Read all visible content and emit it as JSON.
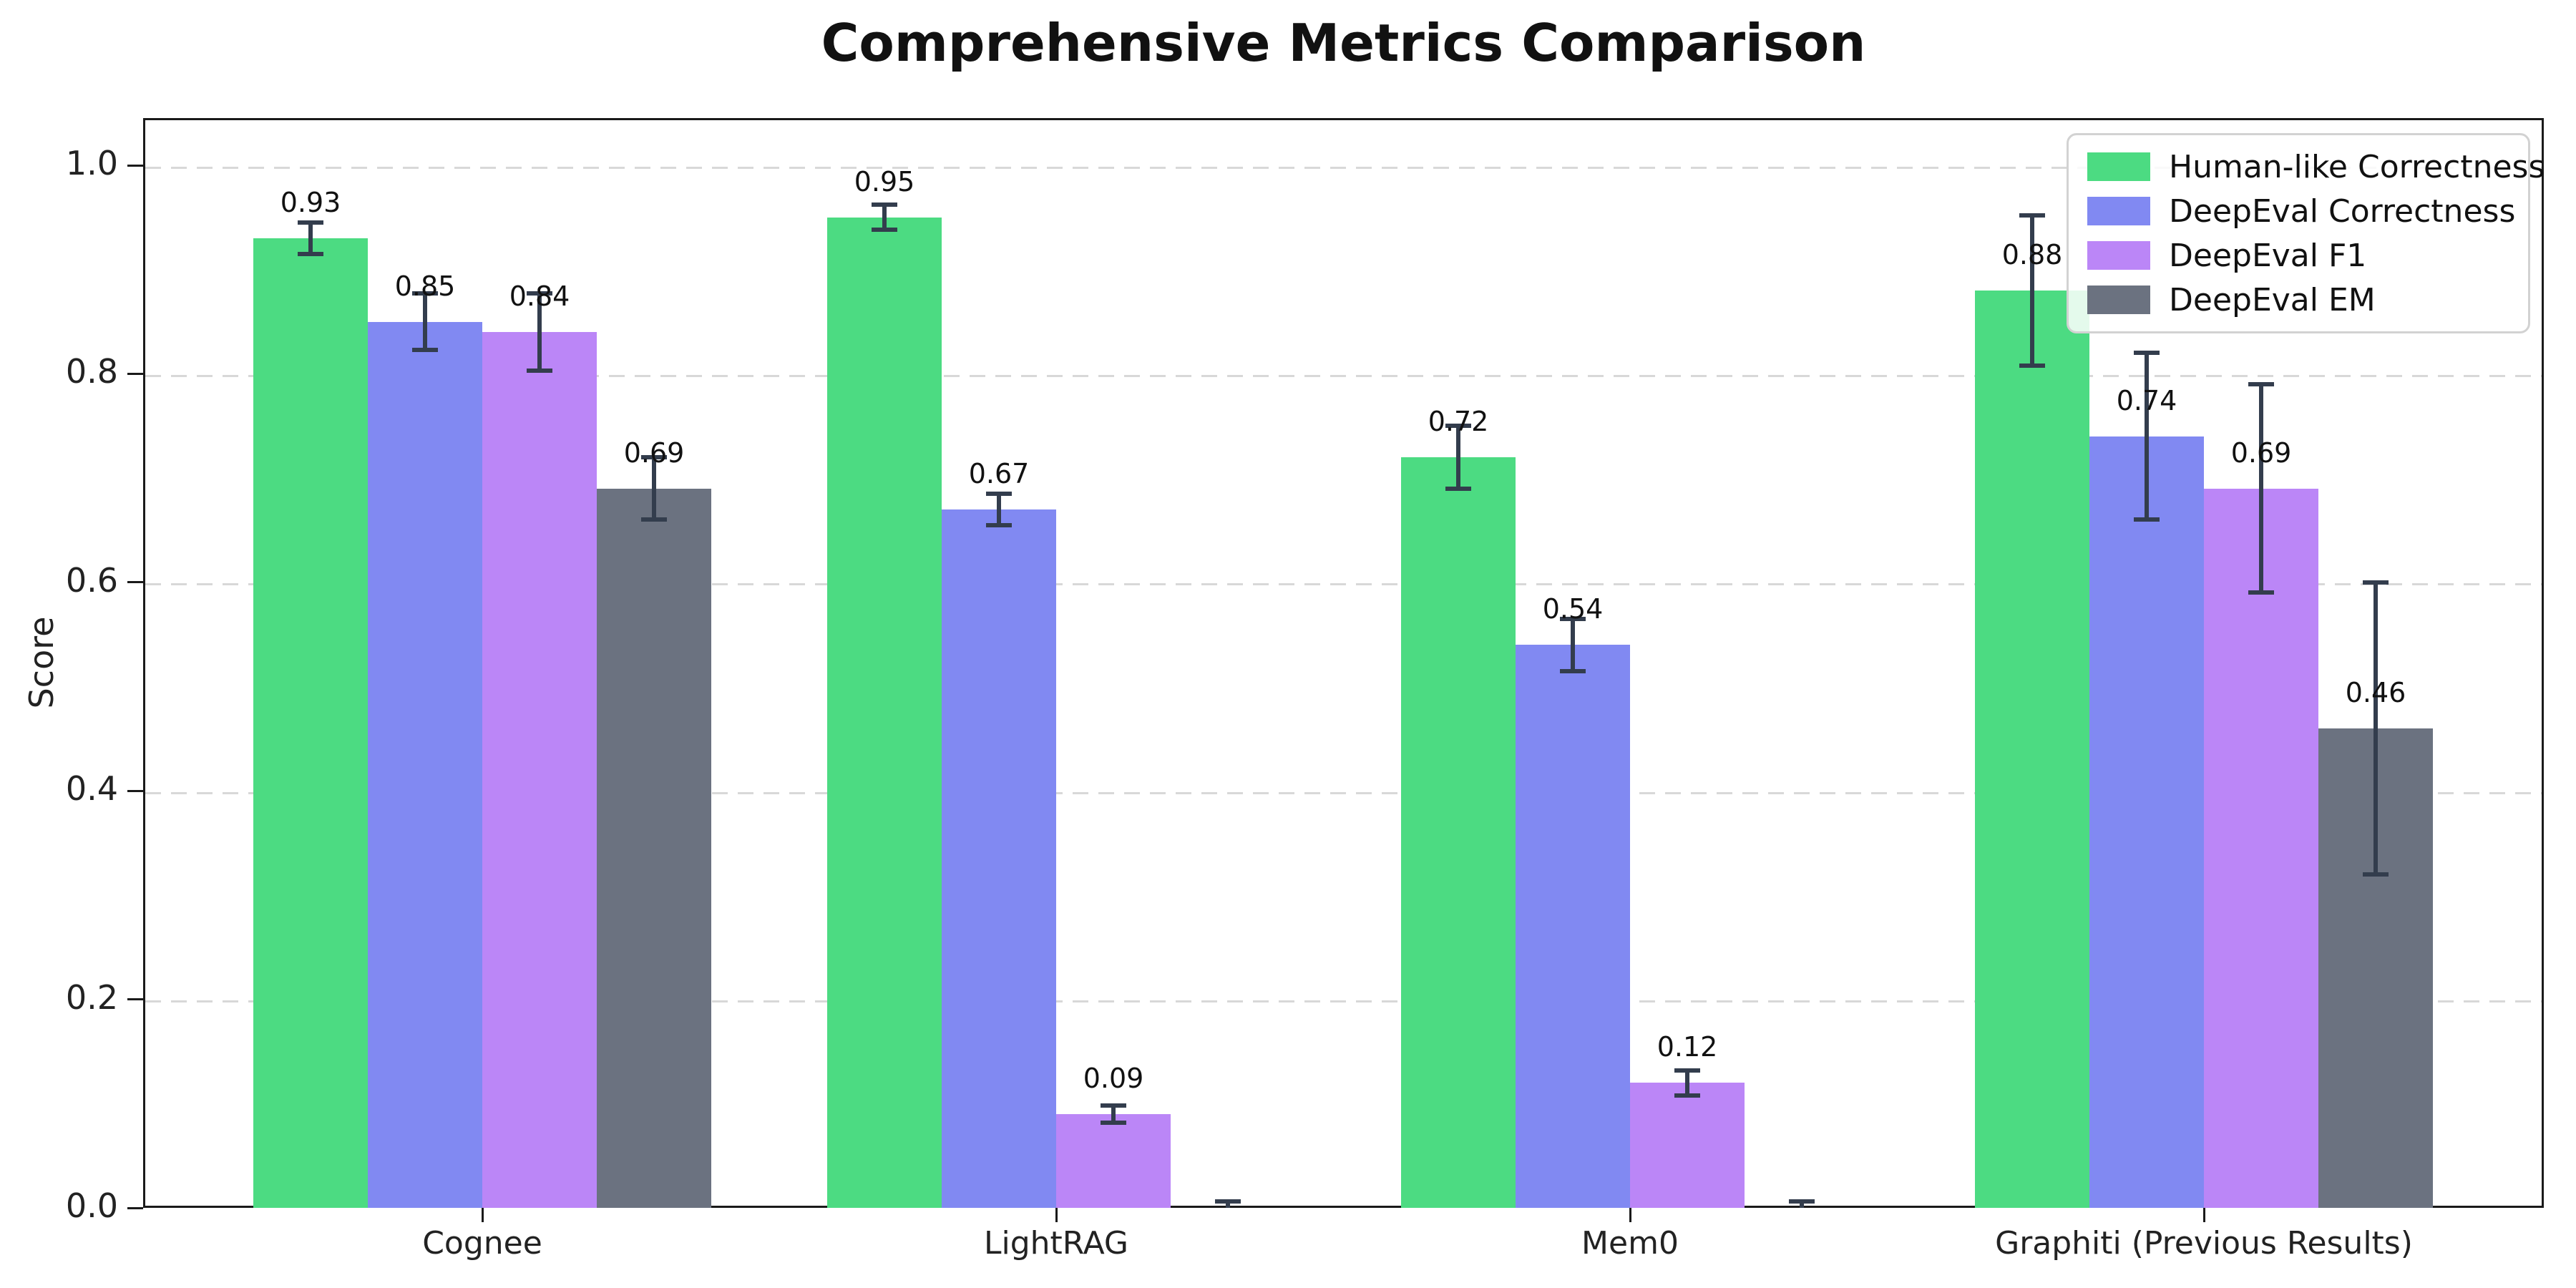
{
  "chart_data": {
    "type": "bar",
    "title": "Comprehensive Metrics Comparison",
    "ylabel": "Score",
    "xlabel": "",
    "categories": [
      "Cognee",
      "LightRAG",
      "Mem0",
      "Graphiti (Previous Results)"
    ],
    "series": [
      {
        "name": "Human-like Correctness",
        "color": "#4cdb82",
        "values": [
          0.93,
          0.95,
          0.72,
          0.88
        ],
        "errors": [
          0.015,
          0.012,
          0.03,
          0.072
        ],
        "labels": [
          "0.93",
          "0.95",
          "0.72",
          "0.88"
        ]
      },
      {
        "name": "DeepEval Correctness",
        "color": "#8189f2",
        "values": [
          0.85,
          0.67,
          0.54,
          0.74
        ],
        "errors": [
          0.027,
          0.015,
          0.025,
          0.08
        ],
        "labels": [
          "0.85",
          "0.67",
          "0.54",
          "0.74"
        ]
      },
      {
        "name": "DeepEval F1",
        "color": "#bb86f7",
        "values": [
          0.84,
          0.09,
          0.12,
          0.69
        ],
        "errors": [
          0.037,
          0.008,
          0.012,
          0.1
        ],
        "labels": [
          "0.84",
          "0.09",
          "0.12",
          "0.69"
        ]
      },
      {
        "name": "DeepEval EM",
        "color": "#6b7280",
        "values": [
          0.69,
          0.0,
          0.0,
          0.46
        ],
        "errors": [
          0.03,
          0.006,
          0.006,
          0.14
        ],
        "labels": [
          "0.69",
          null,
          null,
          "0.46"
        ]
      }
    ],
    "ytick_labels": [
      "0.0",
      "0.2",
      "0.4",
      "0.6",
      "0.8",
      "1.0"
    ],
    "yticks": [
      0.0,
      0.2,
      0.4,
      0.6,
      0.8,
      1.0
    ],
    "ylim": [
      0.0,
      1.045
    ],
    "grid": "horizontal-dashed",
    "legend_position": "upper-right",
    "colors": {
      "errorbar": "#333d4d",
      "gridline": "#d8d8d8",
      "spine": "#1a1a1a",
      "background": "#ffffff"
    }
  }
}
